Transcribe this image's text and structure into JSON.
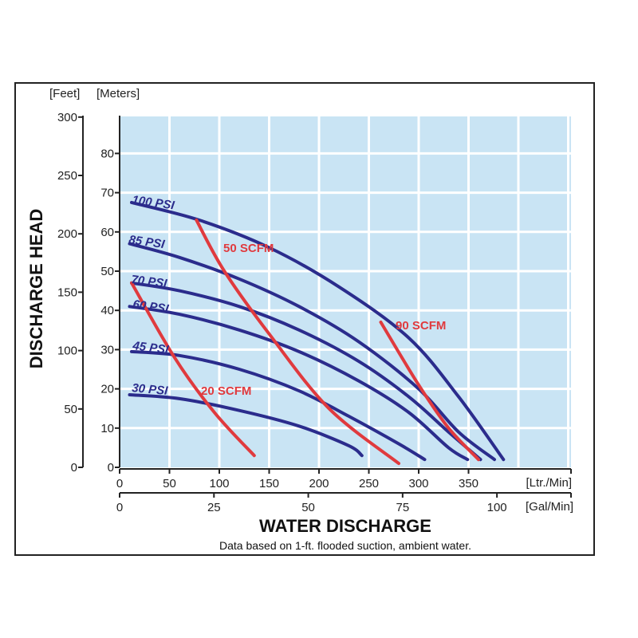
{
  "chart_data": {
    "type": "line",
    "y_label": "DISCHARGE HEAD",
    "x_label": "WATER DISCHARGE",
    "note": "Data based on 1-ft. flooded suction, ambient water.",
    "y_left_unit": "[Feet]",
    "y_right_unit": "[Meters]",
    "x_top_unit": "[Ltr./Min]",
    "x_bottom_unit": "[Gal/Min]",
    "meters_axis": {
      "range": [
        0,
        90
      ],
      "ticks": [
        "0",
        "10",
        "20",
        "30",
        "40",
        "50",
        "60",
        "70",
        "80"
      ]
    },
    "feet_axis": {
      "range": [
        0,
        300
      ],
      "ticks": [
        "0",
        "50",
        "100",
        "150",
        "200",
        "250",
        "300"
      ]
    },
    "ltr_axis": {
      "range": [
        0,
        450
      ],
      "ticks": [
        "0",
        "50",
        "100",
        "150",
        "200",
        "250",
        "300",
        "350"
      ]
    },
    "gal_axis": {
      "range": [
        0,
        100
      ],
      "ticks": [
        "0",
        "25",
        "50",
        "75",
        "100"
      ]
    },
    "grid": true,
    "colors": {
      "psi": "#2b2c8c",
      "scfm": "#e03a3e",
      "plot_bg": "#c9e4f4"
    },
    "psi_series": [
      {
        "name": "100 PSI",
        "points": [
          [
            12,
            67.5
          ],
          [
            80,
            63
          ],
          [
            150,
            56
          ],
          [
            220,
            46
          ],
          [
            290,
            33
          ],
          [
            340,
            18
          ],
          [
            385,
            2
          ]
        ]
      },
      {
        "name": "85 PSI",
        "points": [
          [
            10,
            57
          ],
          [
            60,
            53.5
          ],
          [
            120,
            48
          ],
          [
            180,
            41
          ],
          [
            240,
            32
          ],
          [
            300,
            20
          ],
          [
            340,
            9
          ],
          [
            376,
            2
          ]
        ]
      },
      {
        "name": "70 PSI",
        "points": [
          [
            12,
            47
          ],
          [
            60,
            45
          ],
          [
            120,
            41
          ],
          [
            180,
            35
          ],
          [
            240,
            27
          ],
          [
            290,
            18
          ],
          [
            330,
            9
          ],
          [
            362,
            2
          ]
        ]
      },
      {
        "name": "60 PSI",
        "points": [
          [
            10,
            41
          ],
          [
            60,
            39
          ],
          [
            120,
            35
          ],
          [
            180,
            29.5
          ],
          [
            240,
            22
          ],
          [
            290,
            14
          ],
          [
            330,
            5
          ],
          [
            349,
            2
          ]
        ]
      },
      {
        "name": "45 PSI",
        "points": [
          [
            12,
            29.5
          ],
          [
            60,
            28.5
          ],
          [
            120,
            25
          ],
          [
            180,
            19.5
          ],
          [
            230,
            13
          ],
          [
            280,
            6
          ],
          [
            306,
            2
          ]
        ]
      },
      {
        "name": "30 PSI",
        "points": [
          [
            10,
            18.5
          ],
          [
            60,
            17.5
          ],
          [
            120,
            14.5
          ],
          [
            180,
            10.5
          ],
          [
            230,
            5.5
          ],
          [
            243,
            3
          ]
        ]
      }
    ],
    "scfm_series": [
      {
        "name": "20 SCFM",
        "points": [
          [
            12,
            47
          ],
          [
            55,
            28
          ],
          [
            95,
            14
          ],
          [
            135,
            3
          ]
        ]
      },
      {
        "name": "50 SCFM",
        "points": [
          [
            77,
            63
          ],
          [
            105,
            50
          ],
          [
            150,
            34
          ],
          [
            210,
            15
          ],
          [
            280,
            1
          ]
        ]
      },
      {
        "name": "90 SCFM",
        "points": [
          [
            262,
            37
          ],
          [
            300,
            21
          ],
          [
            330,
            10
          ],
          [
            360,
            2
          ]
        ]
      }
    ]
  }
}
